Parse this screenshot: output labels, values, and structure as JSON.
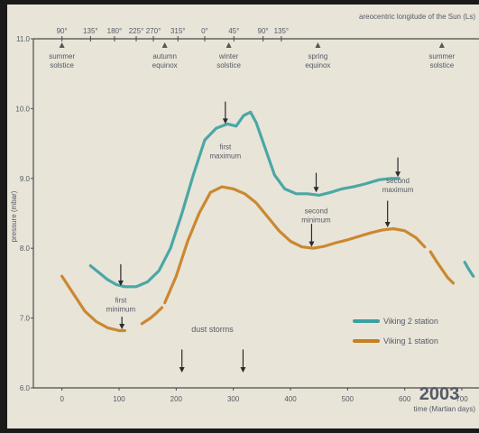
{
  "chart_data": {
    "type": "line",
    "top_axis_title": "areocentric longitude of the Sun (Ls)",
    "top_ticks": [
      {
        "day": 0,
        "label": "90°"
      },
      {
        "day": 50,
        "label": "135°"
      },
      {
        "day": 92,
        "label": "180°"
      },
      {
        "day": 130,
        "label": "225°"
      },
      {
        "day": 160,
        "label": "270°"
      },
      {
        "day": 203,
        "label": "315°"
      },
      {
        "day": 250,
        "label": "0°"
      },
      {
        "day": 301,
        "label": "45°"
      },
      {
        "day": 352,
        "label": "90°"
      },
      {
        "day": 384,
        "label": "135°"
      }
    ],
    "xlabel": "time (Martian days)",
    "x_ticks": [
      {
        "value": 0,
        "label": "0"
      },
      {
        "value": 100,
        "label": "100"
      },
      {
        "value": 200,
        "label": "200"
      },
      {
        "value": 300,
        "label": "300"
      },
      {
        "value": 400,
        "label": "400"
      },
      {
        "value": 500,
        "label": "500"
      },
      {
        "value": 600,
        "label": "600"
      },
      {
        "value": 700,
        "label": "700"
      }
    ],
    "xlim": [
      -50,
      730
    ],
    "ylabel": "pressure (mbar)",
    "y_ticks": [
      {
        "value": 6.0,
        "label": "6.0"
      },
      {
        "value": 7.0,
        "label": "7.0"
      },
      {
        "value": 8.0,
        "label": "8.0"
      },
      {
        "value": 9.0,
        "label": "9.0"
      },
      {
        "value": 10.0,
        "label": "10.0"
      },
      {
        "value": 11.0,
        "label": "11.0"
      }
    ],
    "ylim": [
      6.0,
      11.0
    ],
    "seasons": [
      {
        "day": 0,
        "text": [
          "summer",
          "solstice"
        ]
      },
      {
        "day": 180,
        "text": [
          "autumn",
          "equinox"
        ]
      },
      {
        "day": 292,
        "text": [
          "winter",
          "solstice"
        ]
      },
      {
        "day": 448,
        "text": [
          "spring",
          "equinox"
        ]
      },
      {
        "day": 665,
        "text": [
          "summer",
          "solstice"
        ]
      }
    ],
    "series": [
      {
        "name": "Viking 2 station",
        "color": "#3aa0a0",
        "segments": [
          [
            [
              50,
              7.75
            ],
            [
              65,
              7.65
            ],
            [
              80,
              7.55
            ],
            [
              95,
              7.48
            ],
            [
              110,
              7.45
            ],
            [
              130,
              7.45
            ],
            [
              150,
              7.52
            ],
            [
              170,
              7.68
            ],
            [
              190,
              8.0
            ],
            [
              210,
              8.5
            ],
            [
              230,
              9.05
            ],
            [
              250,
              9.55
            ],
            [
              270,
              9.72
            ],
            [
              290,
              9.78
            ],
            [
              305,
              9.75
            ],
            [
              318,
              9.9
            ],
            [
              330,
              9.95
            ],
            [
              340,
              9.8
            ],
            [
              355,
              9.45
            ],
            [
              372,
              9.05
            ],
            [
              390,
              8.85
            ],
            [
              410,
              8.78
            ],
            [
              430,
              8.78
            ],
            [
              450,
              8.76
            ],
            [
              470,
              8.8
            ],
            [
              490,
              8.85
            ],
            [
              510,
              8.88
            ],
            [
              530,
              8.92
            ],
            [
              555,
              8.98
            ],
            [
              575,
              9.0
            ],
            [
              590,
              9.0
            ]
          ],
          [
            [
              705,
              7.8
            ],
            [
              712,
              7.7
            ],
            [
              720,
              7.6
            ]
          ]
        ]
      },
      {
        "name": "Viking 1 station",
        "color": "#c87d1e",
        "segments": [
          [
            [
              0,
              7.6
            ],
            [
              20,
              7.35
            ],
            [
              40,
              7.1
            ],
            [
              60,
              6.95
            ],
            [
              80,
              6.86
            ],
            [
              100,
              6.82
            ],
            [
              110,
              6.82
            ]
          ],
          [
            [
              140,
              6.92
            ],
            [
              155,
              7.0
            ],
            [
              165,
              7.07
            ],
            [
              175,
              7.15
            ]
          ],
          [
            [
              180,
              7.22
            ],
            [
              200,
              7.6
            ],
            [
              220,
              8.1
            ],
            [
              240,
              8.5
            ],
            [
              260,
              8.8
            ],
            [
              280,
              8.88
            ],
            [
              300,
              8.85
            ],
            [
              320,
              8.78
            ],
            [
              340,
              8.65
            ],
            [
              360,
              8.45
            ],
            [
              380,
              8.25
            ],
            [
              400,
              8.1
            ],
            [
              420,
              8.02
            ],
            [
              440,
              8.0
            ],
            [
              460,
              8.03
            ],
            [
              480,
              8.08
            ],
            [
              500,
              8.12
            ],
            [
              520,
              8.17
            ],
            [
              540,
              8.22
            ],
            [
              560,
              8.26
            ],
            [
              580,
              8.28
            ],
            [
              600,
              8.25
            ],
            [
              620,
              8.15
            ],
            [
              635,
              8.02
            ]
          ],
          [
            [
              645,
              7.95
            ],
            [
              655,
              7.82
            ],
            [
              665,
              7.7
            ],
            [
              675,
              7.58
            ],
            [
              685,
              7.5
            ]
          ]
        ]
      }
    ],
    "annotations": [
      {
        "id": "first-minimum",
        "text": [
          "first",
          "minimum"
        ],
        "day": 103,
        "label_value": 7.22,
        "arrow": [
          7.77,
          7.46
        ]
      },
      {
        "id": "first-maximum",
        "text": [
          "first",
          "maximum"
        ],
        "day": 286,
        "label_value": 9.42,
        "arrow": [
          10.1,
          9.78
        ]
      },
      {
        "id": "second-minimum",
        "text": [
          "second",
          "minimum"
        ],
        "day": 445,
        "label_value": 8.5,
        "arrow": [
          9.08,
          8.8
        ]
      },
      {
        "id": "second-maximum",
        "text": [
          "second",
          "maximum"
        ],
        "day": 588,
        "label_value": 8.93,
        "arrow": [
          9.3,
          9.02
        ]
      }
    ],
    "extra_arrows": [
      {
        "day": 105,
        "from": 7.02,
        "to": 6.84
      },
      {
        "day": 437,
        "from": 8.35,
        "to": 8.02
      },
      {
        "day": 570,
        "from": 8.68,
        "to": 8.3
      }
    ],
    "dust_storms": {
      "text": "dust storms",
      "days": [
        210,
        317
      ],
      "label_value": 6.8,
      "arrow": [
        6.55,
        6.22
      ]
    },
    "legend": {
      "placement": "bottom-right",
      "entries": [
        "Viking 2 station",
        "Viking 1 station"
      ]
    },
    "stamp": "2003",
    "stamp_color": "#e0282d",
    "background": "#e8e4d8",
    "grid": false
  }
}
